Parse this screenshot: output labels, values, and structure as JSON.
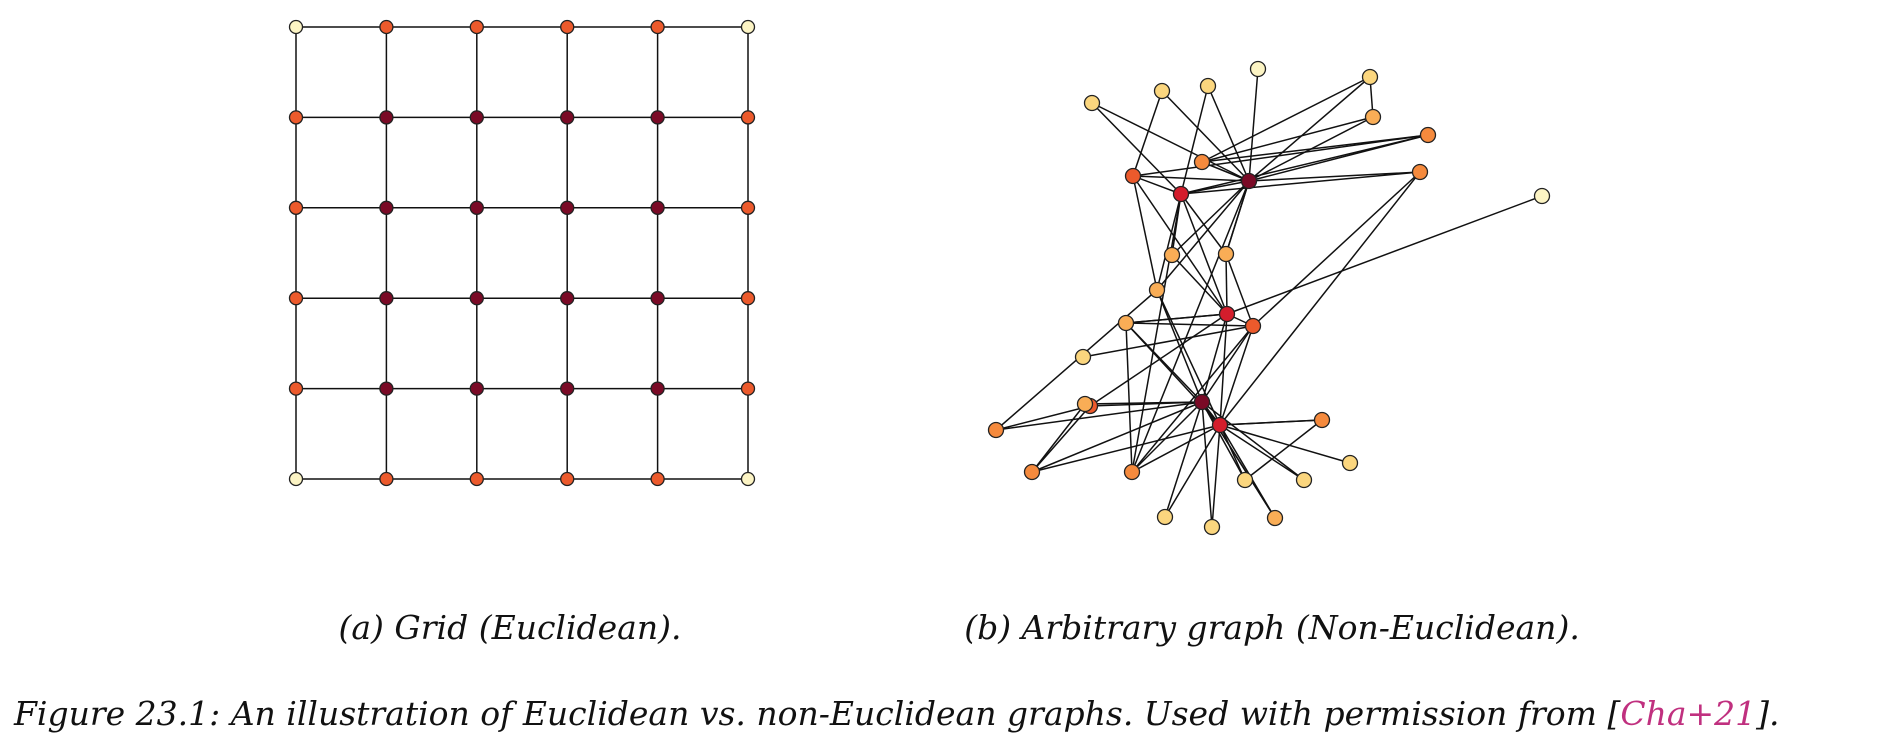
{
  "colors": {
    "c0": "#fcf4c4",
    "c1": "#fbd67e",
    "c2": "#f9ad56",
    "c3": "#f58a3d",
    "c4": "#ec5a2c",
    "c5": "#d41d2c",
    "c6": "#7a0a26"
  },
  "grid": {
    "rows": 6,
    "cols": 6,
    "node_levels": [
      [
        0,
        4,
        4,
        4,
        4,
        0
      ],
      [
        4,
        6,
        6,
        6,
        6,
        4
      ],
      [
        4,
        6,
        6,
        6,
        6,
        4
      ],
      [
        4,
        6,
        6,
        6,
        6,
        4
      ],
      [
        4,
        6,
        6,
        6,
        6,
        4
      ],
      [
        0,
        4,
        4,
        4,
        4,
        0
      ]
    ]
  },
  "graph": {
    "node_levels": [
      1,
      1,
      1,
      0,
      1,
      2,
      3,
      4,
      3,
      6,
      5,
      2,
      2,
      3,
      0,
      2,
      4,
      5,
      1,
      2,
      4,
      3,
      6,
      5,
      3,
      2,
      3,
      1,
      1,
      1,
      1,
      2,
      3,
      1
    ],
    "edges": [
      [
        3,
        9
      ],
      [
        0,
        9
      ],
      [
        0,
        10
      ],
      [
        1,
        9
      ],
      [
        1,
        7
      ],
      [
        2,
        9
      ],
      [
        2,
        10
      ],
      [
        4,
        9
      ],
      [
        4,
        5
      ],
      [
        4,
        8
      ],
      [
        5,
        9
      ],
      [
        5,
        8
      ],
      [
        8,
        9
      ],
      [
        6,
        9
      ],
      [
        6,
        8
      ],
      [
        11,
        9
      ],
      [
        12,
        9
      ],
      [
        7,
        9
      ],
      [
        7,
        10
      ],
      [
        7,
        17
      ],
      [
        7,
        15
      ],
      [
        6,
        10
      ],
      [
        6,
        7
      ],
      [
        10,
        9
      ],
      [
        10,
        11
      ],
      [
        10,
        12
      ],
      [
        10,
        17
      ],
      [
        10,
        13
      ],
      [
        11,
        17
      ],
      [
        12,
        9
      ],
      [
        12,
        17
      ],
      [
        12,
        16
      ],
      [
        13,
        9
      ],
      [
        13,
        16
      ],
      [
        15,
        9
      ],
      [
        15,
        22
      ],
      [
        15,
        21
      ],
      [
        17,
        14
      ],
      [
        17,
        19
      ],
      [
        17,
        22
      ],
      [
        17,
        16
      ],
      [
        17,
        20
      ],
      [
        17,
        23
      ],
      [
        15,
        10
      ],
      [
        16,
        22
      ],
      [
        16,
        23
      ],
      [
        16,
        26
      ],
      [
        16,
        18
      ],
      [
        19,
        17
      ],
      [
        19,
        16
      ],
      [
        19,
        22
      ],
      [
        19,
        26
      ],
      [
        19,
        23
      ],
      [
        20,
        21
      ],
      [
        20,
        24
      ],
      [
        21,
        22
      ],
      [
        22,
        23
      ],
      [
        22,
        25
      ],
      [
        22,
        28
      ],
      [
        22,
        20
      ],
      [
        22,
        26
      ],
      [
        22,
        31
      ],
      [
        22,
        30
      ],
      [
        22,
        29
      ],
      [
        22,
        27
      ],
      [
        23,
        27
      ],
      [
        23,
        26
      ],
      [
        23,
        24
      ],
      [
        23,
        29
      ],
      [
        23,
        30
      ],
      [
        23,
        33
      ],
      [
        23,
        28
      ],
      [
        23,
        31
      ],
      [
        23,
        32
      ],
      [
        24,
        25
      ],
      [
        24,
        22
      ],
      [
        25,
        20
      ],
      [
        26,
        9
      ],
      [
        26,
        10
      ],
      [
        29,
        32
      ],
      [
        31,
        22
      ],
      [
        32,
        23
      ],
      [
        13,
        23
      ],
      [
        15,
        23
      ]
    ]
  },
  "captions": {
    "a": "(a) Grid (Euclidean).",
    "b": "(b) Arbitrary graph (Non-Euclidean).",
    "main_prefix": "Figure 23.1: An illustration of Euclidean vs. non-Euclidean graphs. Used with permission from [",
    "main_cite": "Cha+21",
    "main_suffix": "]."
  }
}
